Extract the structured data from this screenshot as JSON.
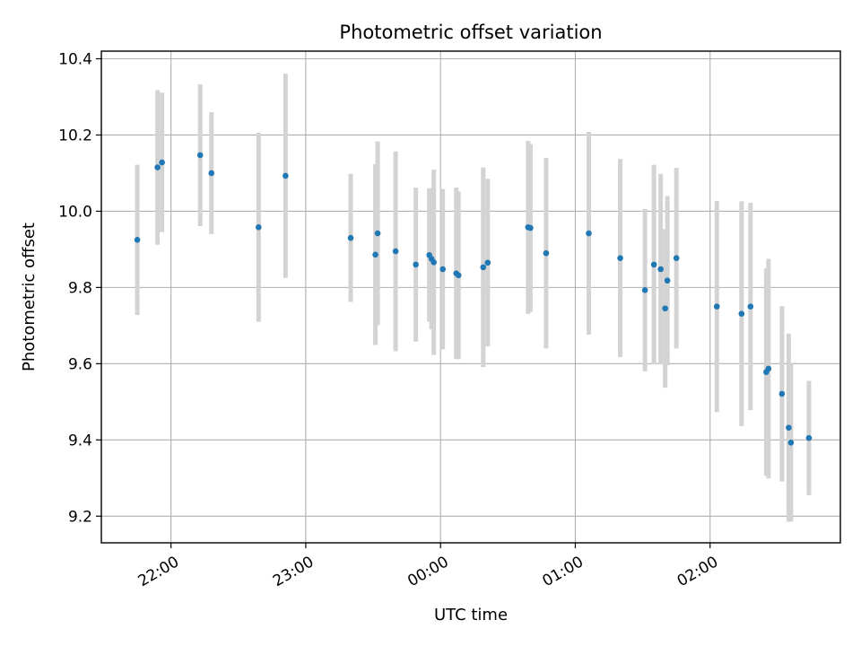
{
  "chart_data": {
    "type": "scatter",
    "title": "Photometric offset variation",
    "xlabel": "UTC time",
    "ylabel": "Photometric offset",
    "x_axis": {
      "type": "time",
      "range": [
        "21:29",
        "02:58"
      ],
      "ticks": [
        "22:00",
        "23:00",
        "00:00",
        "01:00",
        "02:00"
      ],
      "tick_minutes": [
        1320,
        1380,
        1440,
        1500,
        1560
      ]
    },
    "y_axis": {
      "range": [
        9.13,
        10.42
      ],
      "ticks": [
        "9.2",
        "9.4",
        "9.6",
        "9.8",
        "10.0",
        "10.2",
        "10.4"
      ],
      "tick_values": [
        9.2,
        9.4,
        9.6,
        9.8,
        10.0,
        10.2,
        10.4
      ]
    },
    "grid": true,
    "colors": {
      "point": "#1f77b4",
      "errorbar": "#d3d3d3",
      "grid": "#b0b0b0"
    },
    "series": [
      {
        "points": [
          {
            "time": "21:45",
            "y": 9.925,
            "err": 0.197
          },
          {
            "time": "21:54",
            "y": 10.115,
            "err": 0.203
          },
          {
            "time": "21:56",
            "y": 10.128,
            "err": 0.183
          },
          {
            "time": "22:13",
            "y": 10.147,
            "err": 0.186
          },
          {
            "time": "22:18",
            "y": 10.1,
            "err": 0.16
          },
          {
            "time": "22:39",
            "y": 9.958,
            "err": 0.248
          },
          {
            "time": "22:51",
            "y": 10.093,
            "err": 0.268
          },
          {
            "time": "23:20",
            "y": 9.93,
            "err": 0.168
          },
          {
            "time": "23:31",
            "y": 9.886,
            "err": 0.237
          },
          {
            "time": "23:32",
            "y": 9.942,
            "err": 0.241
          },
          {
            "time": "23:40",
            "y": 9.895,
            "err": 0.262
          },
          {
            "time": "23:49",
            "y": 9.86,
            "err": 0.202
          },
          {
            "time": "23:55",
            "y": 9.885,
            "err": 0.175
          },
          {
            "time": "23:56",
            "y": 9.875,
            "err": 0.185
          },
          {
            "time": "23:57",
            "y": 9.866,
            "err": 0.243
          },
          {
            "time": "00:01",
            "y": 9.848,
            "err": 0.21
          },
          {
            "time": "00:07",
            "y": 9.837,
            "err": 0.225
          },
          {
            "time": "00:08",
            "y": 9.832,
            "err": 0.22
          },
          {
            "time": "00:19",
            "y": 9.853,
            "err": 0.262
          },
          {
            "time": "00:21",
            "y": 9.865,
            "err": 0.22
          },
          {
            "time": "00:39",
            "y": 9.958,
            "err": 0.227
          },
          {
            "time": "00:40",
            "y": 9.956,
            "err": 0.22
          },
          {
            "time": "00:47",
            "y": 9.89,
            "err": 0.25
          },
          {
            "time": "01:06",
            "y": 9.942,
            "err": 0.266
          },
          {
            "time": "01:20",
            "y": 9.877,
            "err": 0.26
          },
          {
            "time": "01:31",
            "y": 9.793,
            "err": 0.213
          },
          {
            "time": "01:35",
            "y": 9.86,
            "err": 0.262
          },
          {
            "time": "01:38",
            "y": 9.848,
            "err": 0.25
          },
          {
            "time": "01:40",
            "y": 9.745,
            "err": 0.208
          },
          {
            "time": "01:41",
            "y": 9.818,
            "err": 0.222
          },
          {
            "time": "01:45",
            "y": 9.877,
            "err": 0.237
          },
          {
            "time": "02:03",
            "y": 9.75,
            "err": 0.277
          },
          {
            "time": "02:14",
            "y": 9.731,
            "err": 0.295
          },
          {
            "time": "02:18",
            "y": 9.75,
            "err": 0.272
          },
          {
            "time": "02:25",
            "y": 9.578,
            "err": 0.272
          },
          {
            "time": "02:26",
            "y": 9.587,
            "err": 0.288
          },
          {
            "time": "02:32",
            "y": 9.521,
            "err": 0.23
          },
          {
            "time": "02:35",
            "y": 9.432,
            "err": 0.247
          },
          {
            "time": "02:36",
            "y": 9.393,
            "err": 0.207
          },
          {
            "time": "02:44",
            "y": 9.405,
            "err": 0.15
          }
        ]
      }
    ]
  }
}
